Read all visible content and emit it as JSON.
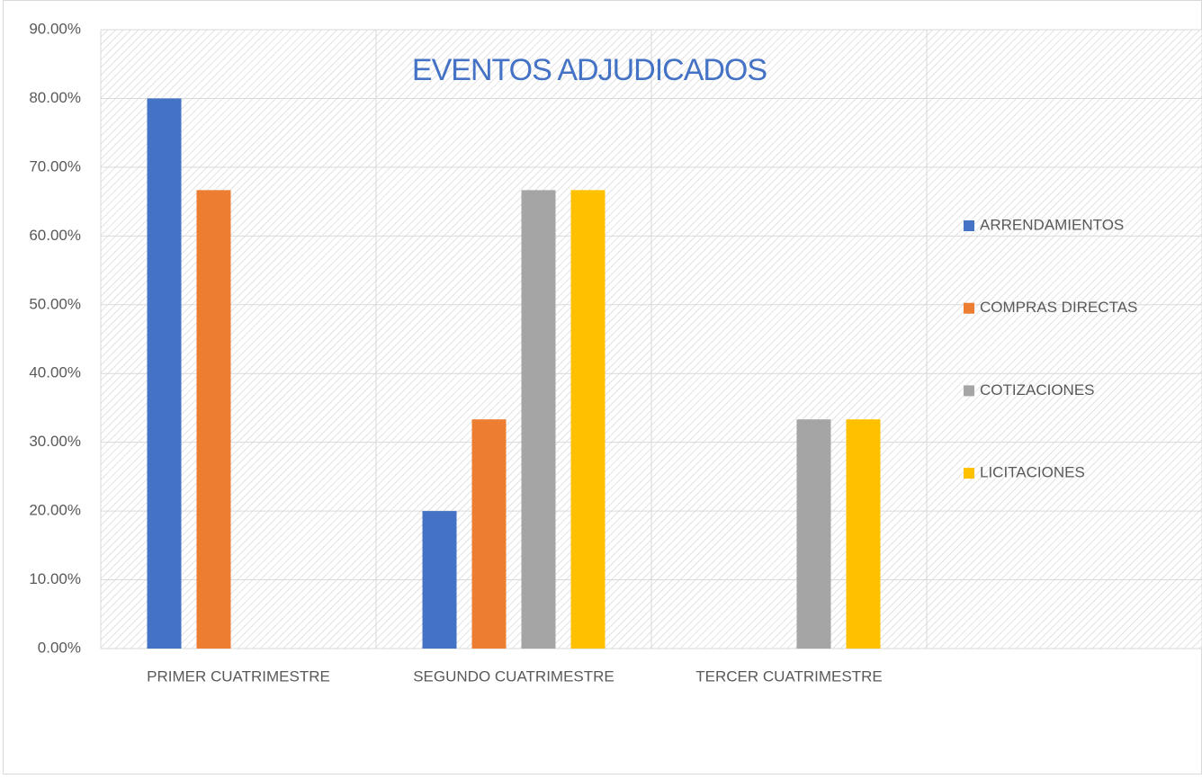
{
  "chart_data": {
    "type": "bar",
    "title": "EVENTOS ADJUDICADOS",
    "categories": [
      "PRIMER CUATRIMESTRE",
      "SEGUNDO CUATRIMESTRE",
      "TERCER CUATRIMESTRE",
      null
    ],
    "series": [
      {
        "name": "ARRENDAMIENTOS",
        "color": "#4472c4",
        "values": [
          80,
          20,
          null,
          null
        ]
      },
      {
        "name": "COMPRAS DIRECTAS",
        "color": "#ed7d31",
        "values": [
          66.67,
          33.33,
          null,
          null
        ]
      },
      {
        "name": "COTIZACIONES",
        "color": "#a5a5a5",
        "values": [
          null,
          66.67,
          33.33,
          null
        ]
      },
      {
        "name": "LICITACIONES",
        "color": "#ffc000",
        "values": [
          null,
          66.67,
          33.33,
          null
        ]
      }
    ],
    "ylim": [
      0,
      90
    ],
    "yticks": [
      {
        "value": 0,
        "label": "0.00%"
      },
      {
        "value": 10,
        "label": "10.00%"
      },
      {
        "value": 20,
        "label": "20.00%"
      },
      {
        "value": 30,
        "label": "30.00%"
      },
      {
        "value": 40,
        "label": "40.00%"
      },
      {
        "value": 50,
        "label": "50.00%"
      },
      {
        "value": 60,
        "label": "60.00%"
      },
      {
        "value": 70,
        "label": "70.00%"
      },
      {
        "value": 80,
        "label": "80.00%"
      },
      {
        "value": 90,
        "label": "90.00%"
      }
    ],
    "grid": true,
    "legend": "right",
    "title_color": "#4472c4"
  }
}
